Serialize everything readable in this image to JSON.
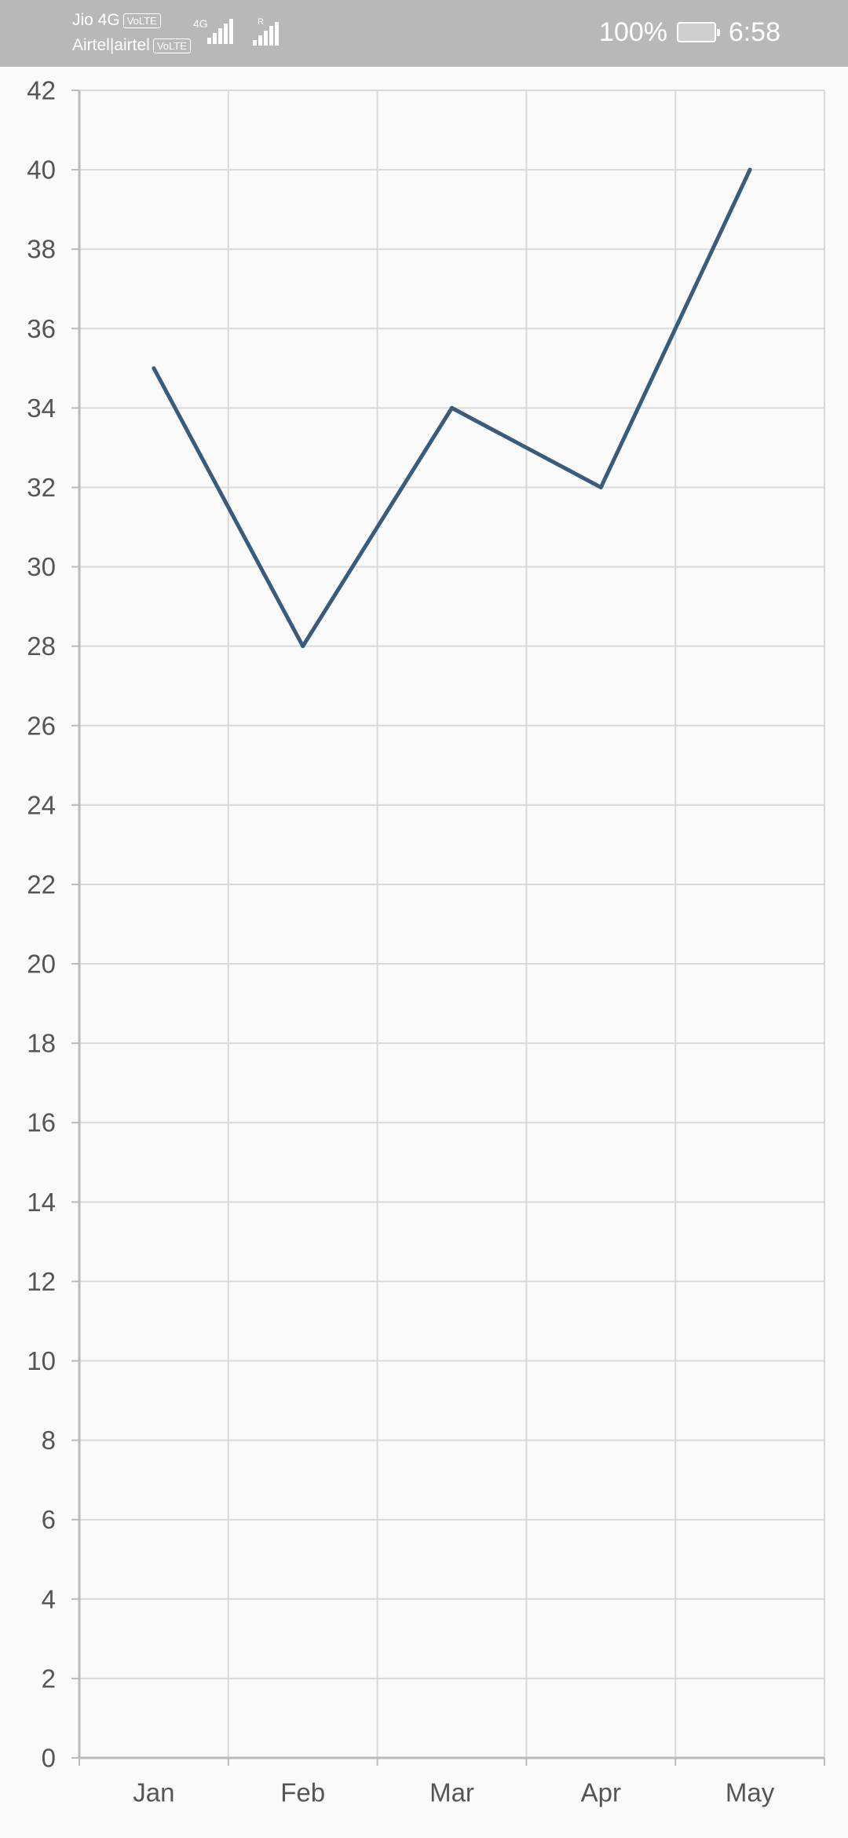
{
  "status_bar": {
    "carrier_1": "Jio 4G",
    "carrier_2": "Airtel|airtel",
    "volte_label": "VoLTE",
    "network_type": "4G",
    "roaming": "R",
    "battery": "100%",
    "time": "6:58",
    "background_color": "#b8b8b8"
  },
  "chart_data": {
    "type": "line",
    "categories": [
      "Jan",
      "Feb",
      "Mar",
      "Apr",
      "May"
    ],
    "series": [
      {
        "values": [
          35,
          28,
          34,
          32,
          40
        ],
        "color": "#3a5c7c"
      }
    ],
    "ylim": [
      0,
      42
    ],
    "y_ticks": [
      0,
      2,
      4,
      6,
      8,
      10,
      12,
      14,
      16,
      18,
      20,
      22,
      24,
      26,
      28,
      30,
      32,
      34,
      36,
      38,
      40,
      42
    ],
    "grid": true,
    "title": "",
    "xlabel": "",
    "ylabel": ""
  }
}
